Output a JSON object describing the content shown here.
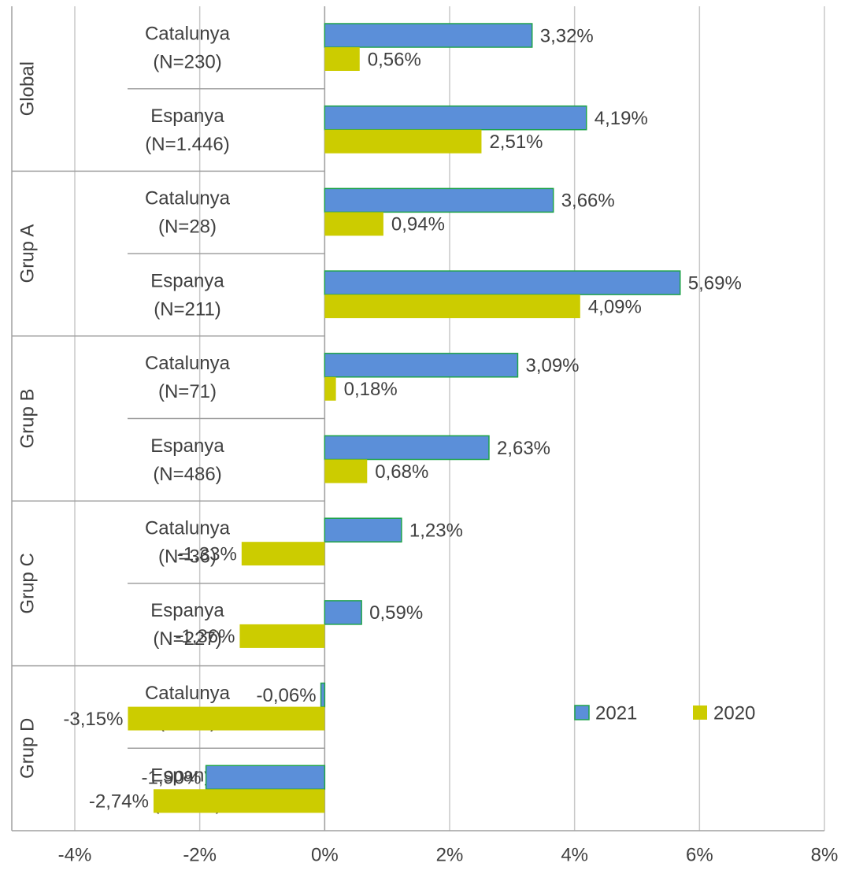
{
  "chart_data": {
    "type": "barh",
    "group_labels": [
      "Global",
      "Grup A",
      "Grup B",
      "Grup C",
      "Grup D"
    ],
    "categories": [
      [
        "Catalunya",
        "(N=230)"
      ],
      [
        "Espanya",
        "(N=1.446)"
      ],
      [
        "Catalunya",
        "(N=28)"
      ],
      [
        "Espanya",
        "(N=211)"
      ],
      [
        "Catalunya",
        "(N=71)"
      ],
      [
        "Espanya",
        "(N=486)"
      ],
      [
        "Catalunya",
        "(N=36)"
      ],
      [
        "Espanya",
        "(N=227)"
      ],
      [
        "Catalunya",
        "(N=95)"
      ],
      [
        "Espanya",
        "(N=522)"
      ]
    ],
    "series": [
      {
        "name": "2021",
        "color": "#5b8fd9",
        "edge": "#1fa34a",
        "values": [
          3.32,
          4.19,
          3.66,
          5.69,
          3.09,
          2.63,
          1.23,
          0.59,
          -0.06,
          -1.9
        ],
        "value_labels": [
          "3,32%",
          "4,19%",
          "3,66%",
          "5,69%",
          "3,09%",
          "2,63%",
          "1,23%",
          "0,59%",
          "-0,06%",
          "-1,90%"
        ]
      },
      {
        "name": "2020",
        "color": "#cccc00",
        "values": [
          0.56,
          2.51,
          0.94,
          4.09,
          0.18,
          0.68,
          -1.33,
          -1.36,
          -3.15,
          -2.74
        ],
        "value_labels": [
          "0,56%",
          "2,51%",
          "0,94%",
          "4,09%",
          "0,18%",
          "0,68%",
          "-1,33%",
          "-1,36%",
          "-3,15%",
          "-2,74%"
        ]
      }
    ],
    "xlim": [
      -4,
      8
    ],
    "xticks": [
      {
        "value": -4,
        "label": "-4%"
      },
      {
        "value": -2,
        "label": "-2%"
      },
      {
        "value": 0,
        "label": "0%"
      },
      {
        "value": 2,
        "label": "2%"
      },
      {
        "value": 4,
        "label": "4%"
      },
      {
        "value": 6,
        "label": "6%"
      },
      {
        "value": 8,
        "label": "8%"
      }
    ],
    "grid": true
  }
}
